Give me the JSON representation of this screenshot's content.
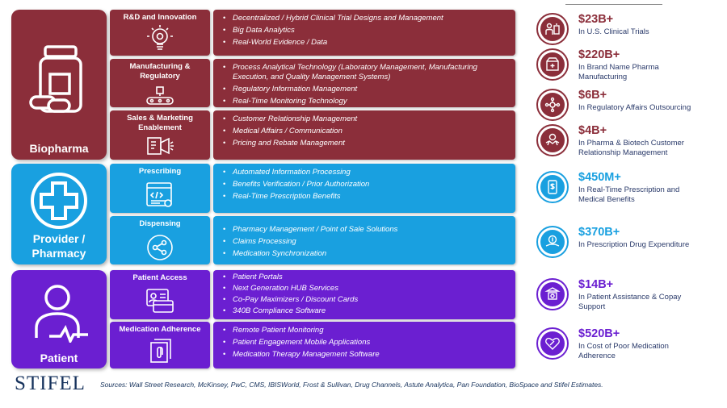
{
  "colors": {
    "biopharma": "#8b2e3a",
    "provider": "#19a0e0",
    "patient": "#6b1fd1",
    "stat_value_bio": "#8b2e3a",
    "stat_value_prov": "#19a0e0",
    "stat_value_pat": "#6b1fd1"
  },
  "categories": {
    "biopharma": {
      "label": "Biopharma",
      "icon": "pill-bottle-icon"
    },
    "provider": {
      "label": "Provider /\nPharmacy",
      "icon": "medical-cross-icon"
    },
    "patient": {
      "label": "Patient",
      "icon": "person-pulse-icon"
    }
  },
  "segments": {
    "rd": {
      "label": "R&D and Innovation",
      "icon": "lightbulb-gear-icon",
      "items": [
        "Decentralized / Hybrid Clinical Trial Designs and Management",
        "Big Data Analytics",
        "Real-World Evidence / Data"
      ]
    },
    "manufacturing": {
      "label": "Manufacturing & Regulatory",
      "icon": "conveyor-belt-icon",
      "items": [
        "Process Analytical Technology (Laboratory Management, Manufacturing Execution, and Quality Management Systems)",
        "Regulatory Information Management",
        "Real-Time Monitoring Technology"
      ]
    },
    "sales": {
      "label": "Sales & Marketing Enablement",
      "icon": "megaphone-icon",
      "items": [
        "Customer Relationship Management",
        "Medical Affairs / Communication",
        "Pricing and Rebate Management"
      ]
    },
    "prescribing": {
      "label": "Prescribing",
      "icon": "code-window-icon",
      "items": [
        "Automated Information Processing",
        "Benefits Verification / Prior Authorization",
        "Real-Time Prescription Benefits"
      ]
    },
    "dispensing": {
      "label": "Dispensing",
      "icon": "share-icon",
      "items": [
        "Pharmacy Management / Point of Sale Solutions",
        "Claims Processing",
        "Medication Synchronization"
      ]
    },
    "access": {
      "label": "Patient Access",
      "icon": "id-card-icon",
      "items": [
        "Patient Portals",
        "Next Generation HUB Services",
        "Co-Pay Maximizers / Discount Cards",
        "340B Compliance Software"
      ]
    },
    "adherence": {
      "label": "Medication Adherence",
      "icon": "paperclip-document-icon",
      "items": [
        "Remote Patient Monitoring",
        "Patient Engagement Mobile Applications",
        "Medication Therapy Management Software"
      ]
    }
  },
  "stats": [
    {
      "value": "$23B+",
      "desc": "In U.S. Clinical Trials",
      "icon": "clinical-trial-icon"
    },
    {
      "value": "$220B+",
      "desc": "In Brand Name Pharma Manufacturing",
      "icon": "pharma-box-icon"
    },
    {
      "value": "$6B+",
      "desc": "In Regulatory Affairs Outsourcing",
      "icon": "network-icon"
    },
    {
      "value": "$4B+",
      "desc": "In Pharma & Biotech Customer Relationship Management",
      "icon": "handshake-icon"
    },
    {
      "value": "$450M+",
      "desc": "In Real-Time Prescription and Medical Benefits",
      "icon": "mobile-dollar-icon"
    },
    {
      "value": "$370B+",
      "desc": "In Prescription Drug Expenditure",
      "icon": "hand-dollar-icon"
    },
    {
      "value": "$14B+",
      "desc": "In Patient Assistance & Copay Support",
      "icon": "assistance-icon"
    },
    {
      "value": "$520B+",
      "desc": "In Cost of Poor Medication Adherence",
      "icon": "pill-heart-icon"
    }
  ],
  "footer": {
    "logo": "STIFEL",
    "sources": "Sources: Wall Street Research, McKinsey, PwC, CMS, IBISWorld, Frost & Sullivan, Drug Channels, Astute Analytica, Pan Foundation, BioSpace and Stifel Estimates."
  }
}
